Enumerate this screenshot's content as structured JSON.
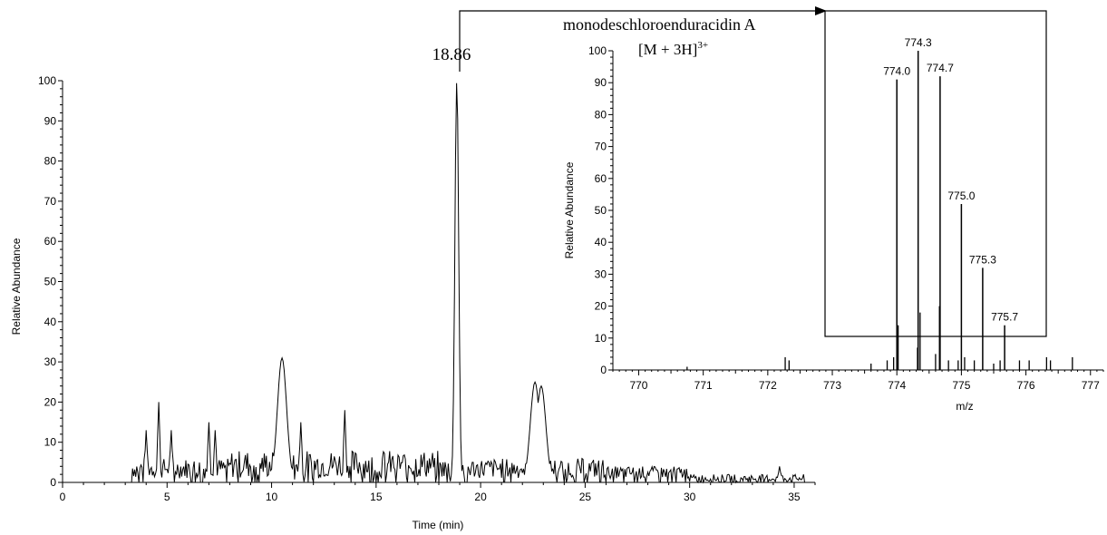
{
  "chart_data": [
    {
      "type": "line",
      "id": "chromatogram",
      "xlabel": "Time (min)",
      "ylabel": "Relative Abundance",
      "xlim": [
        0,
        36
      ],
      "ylim": [
        0,
        100
      ],
      "x_ticks": [
        "0",
        "5",
        "10",
        "15",
        "20",
        "25",
        "30",
        "35"
      ],
      "y_ticks": [
        "0",
        "10",
        "20",
        "30",
        "40",
        "50",
        "60",
        "70",
        "80",
        "90",
        "100"
      ],
      "peak_label": "18.86",
      "peak_rt": 18.86,
      "notable_peaks": [
        {
          "x": 4.0,
          "y": 13
        },
        {
          "x": 4.6,
          "y": 20
        },
        {
          "x": 5.2,
          "y": 13
        },
        {
          "x": 7.0,
          "y": 15
        },
        {
          "x": 7.3,
          "y": 13
        },
        {
          "x": 10.5,
          "y": 31
        },
        {
          "x": 11.4,
          "y": 15
        },
        {
          "x": 13.5,
          "y": 18
        },
        {
          "x": 18.86,
          "y": 100
        },
        {
          "x": 22.6,
          "y": 25
        },
        {
          "x": 22.9,
          "y": 24
        },
        {
          "x": 34.3,
          "y": 4
        }
      ]
    },
    {
      "type": "bar",
      "id": "mass-spectrum",
      "xlabel": "m/z",
      "ylabel": "Relative Abundance",
      "xlim": [
        769.6,
        777.2
      ],
      "ylim": [
        0,
        100
      ],
      "x_ticks": [
        "770",
        "771",
        "772",
        "773",
        "774",
        "775",
        "776",
        "777"
      ],
      "y_ticks": [
        "0",
        "10",
        "20",
        "30",
        "40",
        "50",
        "60",
        "70",
        "80",
        "90",
        "100"
      ],
      "labeled_peaks": [
        {
          "label": "774.0",
          "x": 774.0,
          "y": 91
        },
        {
          "label": "774.3",
          "x": 774.33,
          "y": 100
        },
        {
          "label": "774.7",
          "x": 774.67,
          "y": 92
        },
        {
          "label": "775.0",
          "x": 775.0,
          "y": 52
        },
        {
          "label": "775.3",
          "x": 775.33,
          "y": 32
        },
        {
          "label": "775.7",
          "x": 775.67,
          "y": 14
        }
      ],
      "minor_peaks": [
        {
          "x": 770.75,
          "y": 1
        },
        {
          "x": 772.27,
          "y": 4
        },
        {
          "x": 772.33,
          "y": 3
        },
        {
          "x": 773.6,
          "y": 2
        },
        {
          "x": 773.85,
          "y": 3
        },
        {
          "x": 773.95,
          "y": 4
        },
        {
          "x": 774.02,
          "y": 14
        },
        {
          "x": 774.32,
          "y": 7
        },
        {
          "x": 774.36,
          "y": 18
        },
        {
          "x": 774.6,
          "y": 5
        },
        {
          "x": 774.66,
          "y": 20
        },
        {
          "x": 774.8,
          "y": 3
        },
        {
          "x": 774.95,
          "y": 3
        },
        {
          "x": 775.05,
          "y": 4
        },
        {
          "x": 775.2,
          "y": 3
        },
        {
          "x": 775.5,
          "y": 2
        },
        {
          "x": 775.6,
          "y": 3
        },
        {
          "x": 775.9,
          "y": 3
        },
        {
          "x": 776.05,
          "y": 3
        },
        {
          "x": 776.32,
          "y": 4
        },
        {
          "x": 776.38,
          "y": 3
        },
        {
          "x": 776.72,
          "y": 4
        }
      ]
    }
  ],
  "annotation": {
    "compound": "monodeschloroenduracidin A",
    "ion_main": "[M + 3H]",
    "ion_charge": "3+"
  }
}
